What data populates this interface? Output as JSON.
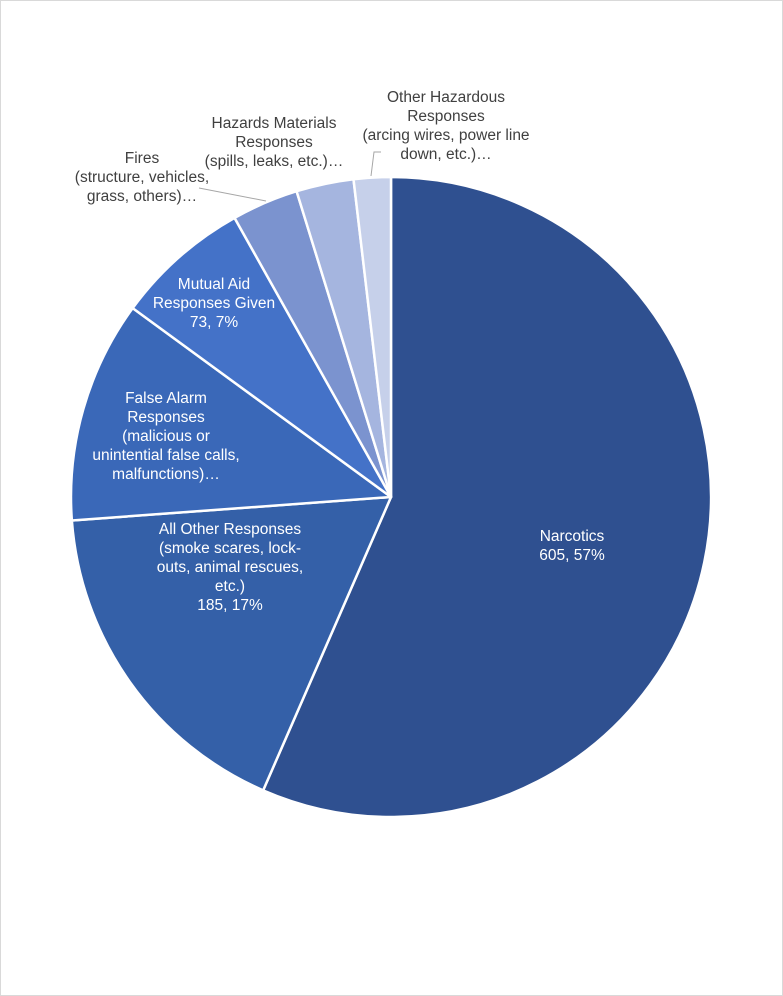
{
  "chart_data": {
    "type": "pie",
    "title": "",
    "start_angle_deg": 0,
    "direction": "clockwise",
    "slices": [
      {
        "name": "Narcotics",
        "value": 605,
        "percent": 57,
        "color": "#2f5090",
        "label_lines": [
          "Narcotics",
          "605, 57%"
        ],
        "label_style": "inside"
      },
      {
        "name": "All Other Responses (smoke scares, lock-outs, animal rescues, etc.)",
        "value": 185,
        "percent": 17,
        "color": "#3460a8",
        "label_lines": [
          "All Other Responses",
          "(smoke scares, lock-",
          "outs, animal rescues,",
          "etc.)",
          "185, 17%"
        ],
        "label_style": "inside"
      },
      {
        "name": "False Alarm Responses (malicious or unintential false calls, malfunctions)",
        "value": 120,
        "percent": 11,
        "color": "#3a68b8",
        "label_lines": [
          "False Alarm",
          "Responses",
          "(malicious or",
          "unintential false calls,",
          "malfunctions)…"
        ],
        "label_style": "inside"
      },
      {
        "name": "Mutual Aid Responses Given",
        "value": 73,
        "percent": 7,
        "color": "#4472c8",
        "label_lines": [
          "Mutual Aid",
          "Responses Given",
          "73, 7%"
        ],
        "label_style": "inside"
      },
      {
        "name": "Fires (structure, vehicles, grass, others)",
        "value": 36,
        "percent": 3,
        "color": "#7b93cf",
        "label_lines": [
          "Fires",
          "(structure, vehicles,",
          "grass, others)…"
        ],
        "label_style": "callout"
      },
      {
        "name": "Hazards Materials Responses (spills, leaks, etc.)",
        "value": 31,
        "percent": 3,
        "color": "#a5b5df",
        "label_lines": [
          "Hazards Materials",
          "Responses",
          "(spills, leaks, etc.)…"
        ],
        "label_style": "callout"
      },
      {
        "name": "Other Hazardous Responses (arcing wires, power line down, etc.)",
        "value": 20,
        "percent": 2,
        "color": "#c6d0ea",
        "label_lines": [
          "Other Hazardous",
          "Responses",
          "(arcing wires, power line",
          "down, etc.)…"
        ],
        "label_style": "callout"
      }
    ],
    "legend": "none"
  }
}
